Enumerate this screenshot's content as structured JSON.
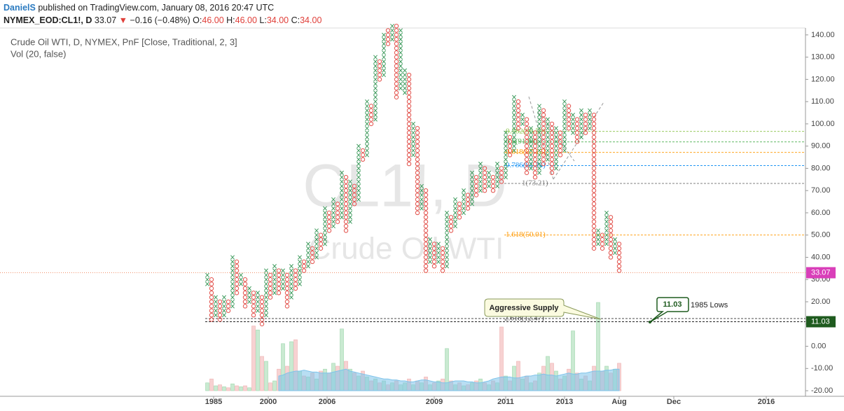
{
  "header": {
    "author": "DanielS",
    "published": "published on TradingView.com, January 08, 2016 20:47 UTC",
    "symbol": "NYMEX_EOD:CL1!, D",
    "last": "33.07",
    "arrow": "▼",
    "change": "−0.16 (−0.48%)",
    "ohlc": [
      {
        "label": "O:",
        "value": "46.00"
      },
      {
        "label": "H:",
        "value": "46.00"
      },
      {
        "label": "L:",
        "value": "34.00"
      },
      {
        "label": "C:",
        "value": "34.00"
      }
    ]
  },
  "chart_data": {
    "type": "pnf",
    "legend": [
      "Crude Oil WTI, D, NYMEX, PnF [Close, Traditional, 2, 3]",
      "Vol (20, false)"
    ],
    "watermark": [
      "CL1!, D",
      "Crude Oil WTI"
    ],
    "box_size": 2,
    "x_color": "#3d9a5c",
    "o_color": "#e2514b",
    "columns": [
      {
        "type": "X",
        "low": 28,
        "high": 32
      },
      {
        "type": "O",
        "low": 12,
        "high": 30
      },
      {
        "type": "X",
        "low": 14,
        "high": 22
      },
      {
        "type": "O",
        "low": 12,
        "high": 20
      },
      {
        "type": "X",
        "low": 14,
        "high": 22
      },
      {
        "type": "O",
        "low": 16,
        "high": 20
      },
      {
        "type": "X",
        "low": 18,
        "high": 40
      },
      {
        "type": "O",
        "low": 24,
        "high": 38
      },
      {
        "type": "X",
        "low": 28,
        "high": 32
      },
      {
        "type": "O",
        "low": 18,
        "high": 30
      },
      {
        "type": "X",
        "low": 20,
        "high": 26
      },
      {
        "type": "O",
        "low": 14,
        "high": 24
      },
      {
        "type": "X",
        "low": 16,
        "high": 24
      },
      {
        "type": "O",
        "low": 10,
        "high": 22
      },
      {
        "type": "X",
        "low": 14,
        "high": 34
      },
      {
        "type": "O",
        "low": 22,
        "high": 32
      },
      {
        "type": "X",
        "low": 24,
        "high": 36
      },
      {
        "type": "O",
        "low": 24,
        "high": 34
      },
      {
        "type": "X",
        "low": 26,
        "high": 34
      },
      {
        "type": "O",
        "low": 18,
        "high": 32
      },
      {
        "type": "X",
        "low": 22,
        "high": 36
      },
      {
        "type": "O",
        "low": 26,
        "high": 34
      },
      {
        "type": "X",
        "low": 28,
        "high": 40
      },
      {
        "type": "O",
        "low": 34,
        "high": 38
      },
      {
        "type": "X",
        "low": 36,
        "high": 46
      },
      {
        "type": "O",
        "low": 38,
        "high": 44
      },
      {
        "type": "X",
        "low": 40,
        "high": 52
      },
      {
        "type": "O",
        "low": 44,
        "high": 50
      },
      {
        "type": "X",
        "low": 46,
        "high": 62
      },
      {
        "type": "O",
        "low": 52,
        "high": 60
      },
      {
        "type": "X",
        "low": 54,
        "high": 66
      },
      {
        "type": "O",
        "low": 56,
        "high": 64
      },
      {
        "type": "X",
        "low": 58,
        "high": 78
      },
      {
        "type": "O",
        "low": 52,
        "high": 76
      },
      {
        "type": "X",
        "low": 56,
        "high": 74
      },
      {
        "type": "O",
        "low": 64,
        "high": 72
      },
      {
        "type": "X",
        "low": 66,
        "high": 90
      },
      {
        "type": "O",
        "low": 84,
        "high": 88
      },
      {
        "type": "X",
        "low": 86,
        "high": 110
      },
      {
        "type": "O",
        "low": 100,
        "high": 108
      },
      {
        "type": "X",
        "low": 102,
        "high": 130
      },
      {
        "type": "O",
        "low": 120,
        "high": 128
      },
      {
        "type": "X",
        "low": 122,
        "high": 140
      },
      {
        "type": "O",
        "low": 136,
        "high": 142
      },
      {
        "type": "X",
        "low": 138,
        "high": 144
      },
      {
        "type": "O",
        "low": 112,
        "high": 144
      },
      {
        "type": "X",
        "low": 116,
        "high": 142
      },
      {
        "type": "X",
        "low": 114,
        "high": 124
      },
      {
        "type": "O",
        "low": 82,
        "high": 122
      },
      {
        "type": "X",
        "low": 86,
        "high": 100
      },
      {
        "type": "O",
        "low": 60,
        "high": 98
      },
      {
        "type": "X",
        "low": 62,
        "high": 72
      },
      {
        "type": "O",
        "low": 34,
        "high": 70
      },
      {
        "type": "X",
        "low": 38,
        "high": 48
      },
      {
        "type": "O",
        "low": 36,
        "high": 46
      },
      {
        "type": "X",
        "low": 38,
        "high": 46
      },
      {
        "type": "O",
        "low": 34,
        "high": 44
      },
      {
        "type": "X",
        "low": 36,
        "high": 60
      },
      {
        "type": "O",
        "low": 52,
        "high": 58
      },
      {
        "type": "X",
        "low": 54,
        "high": 66
      },
      {
        "type": "O",
        "low": 58,
        "high": 64
      },
      {
        "type": "X",
        "low": 60,
        "high": 70
      },
      {
        "type": "O",
        "low": 62,
        "high": 68
      },
      {
        "type": "X",
        "low": 64,
        "high": 78
      },
      {
        "type": "O",
        "low": 68,
        "high": 76
      },
      {
        "type": "X",
        "low": 70,
        "high": 82
      },
      {
        "type": "O",
        "low": 70,
        "high": 80
      },
      {
        "type": "X",
        "low": 72,
        "high": 78
      },
      {
        "type": "O",
        "low": 70,
        "high": 76
      },
      {
        "type": "X",
        "low": 72,
        "high": 82
      },
      {
        "type": "O",
        "low": 74,
        "high": 80
      },
      {
        "type": "X",
        "low": 76,
        "high": 96
      },
      {
        "type": "O",
        "low": 86,
        "high": 94
      },
      {
        "type": "X",
        "low": 88,
        "high": 112
      },
      {
        "type": "O",
        "low": 98,
        "high": 110
      },
      {
        "type": "X",
        "low": 100,
        "high": 104
      },
      {
        "type": "O",
        "low": 78,
        "high": 102
      },
      {
        "type": "X",
        "low": 80,
        "high": 98
      },
      {
        "type": "O",
        "low": 76,
        "high": 96
      },
      {
        "type": "X",
        "low": 78,
        "high": 108
      },
      {
        "type": "O",
        "low": 82,
        "high": 106
      },
      {
        "type": "X",
        "low": 84,
        "high": 102
      },
      {
        "type": "O",
        "low": 78,
        "high": 100
      },
      {
        "type": "X",
        "low": 80,
        "high": 98
      },
      {
        "type": "O",
        "low": 86,
        "high": 96
      },
      {
        "type": "X",
        "low": 88,
        "high": 110
      },
      {
        "type": "O",
        "low": 98,
        "high": 108
      },
      {
        "type": "X",
        "low": 96,
        "high": 104
      },
      {
        "type": "O",
        "low": 92,
        "high": 102
      },
      {
        "type": "X",
        "low": 94,
        "high": 106
      },
      {
        "type": "O",
        "low": 96,
        "high": 104
      },
      {
        "type": "X",
        "low": 98,
        "high": 106
      },
      {
        "type": "O",
        "low": 44,
        "high": 104
      },
      {
        "type": "X",
        "low": 46,
        "high": 52
      },
      {
        "type": "O",
        "low": 44,
        "high": 50
      },
      {
        "type": "X",
        "low": 46,
        "high": 60
      },
      {
        "type": "O",
        "low": 40,
        "high": 58
      },
      {
        "type": "X",
        "low": 42,
        "high": 48
      },
      {
        "type": "O",
        "low": 34,
        "high": 46
      }
    ],
    "volume": [
      8,
      12,
      5,
      6,
      4,
      3,
      7,
      5,
      4,
      5,
      3,
      66,
      62,
      35,
      30,
      8,
      10,
      22,
      48,
      25,
      50,
      52,
      20,
      15,
      14,
      18,
      12,
      20,
      22,
      18,
      28,
      25,
      63,
      30,
      22,
      18,
      15,
      20,
      14,
      10,
      12,
      8,
      10,
      6,
      8,
      10,
      6,
      8,
      12,
      6,
      10,
      8,
      14,
      6,
      8,
      10,
      12,
      43,
      10,
      6,
      8,
      5,
      6,
      8,
      10,
      12,
      8,
      6,
      10,
      8,
      65,
      15,
      10,
      25,
      30,
      12,
      15,
      8,
      10,
      18,
      25,
      35,
      28,
      20,
      12,
      15,
      22,
      61,
      18,
      12,
      15,
      10,
      25,
      90,
      20,
      25,
      18,
      22,
      28
    ],
    "vol_ma": [
      null,
      null,
      null,
      null,
      null,
      null,
      null,
      null,
      null,
      null,
      null,
      null,
      null,
      null,
      null,
      null,
      null,
      15,
      16,
      18,
      19,
      20,
      20,
      21,
      20,
      19,
      19,
      18,
      18,
      18,
      19,
      20,
      21,
      22,
      20,
      19,
      18,
      17,
      16,
      15,
      14,
      13,
      12,
      12,
      11,
      11,
      10,
      10,
      9,
      9,
      10,
      11,
      11,
      10,
      9,
      9,
      8,
      8,
      9,
      10,
      10,
      10,
      9,
      9,
      8,
      8,
      9,
      10,
      12,
      13,
      14,
      14,
      14,
      13,
      13,
      14,
      15,
      15,
      16,
      16,
      17,
      16,
      16,
      15,
      16,
      17,
      18,
      17,
      17,
      18,
      18,
      19,
      20,
      20,
      20,
      21,
      21,
      22,
      22
    ],
    "vol_color": "#7ec3ea",
    "xlim": [
      -49.33,
      142.33
    ],
    "ylim": [
      -22.5,
      143.1
    ],
    "y2lim": [
      0,
      100
    ],
    "xticks": [
      {
        "value": 1.5,
        "label": "1985"
      },
      {
        "value": 14.5,
        "label": "2000"
      },
      {
        "value": 28.5,
        "label": "2006"
      },
      {
        "value": 54,
        "label": "2009"
      },
      {
        "value": 71,
        "label": "2011"
      },
      {
        "value": 85,
        "label": "2013"
      },
      {
        "value": 98,
        "label": "Aug"
      },
      {
        "value": 111,
        "label": "Dec"
      },
      {
        "value": 133,
        "label": "2016"
      }
    ],
    "yticks": [
      {
        "value": 140,
        "label": "140.00"
      },
      {
        "value": 130,
        "label": "130.00"
      },
      {
        "value": 120,
        "label": "120.00"
      },
      {
        "value": 110,
        "label": "110.00"
      },
      {
        "value": 100,
        "label": "100.00"
      },
      {
        "value": 90,
        "label": "90.00"
      },
      {
        "value": 80,
        "label": "80.00"
      },
      {
        "value": 70,
        "label": "70.00"
      },
      {
        "value": 60,
        "label": "60.00"
      },
      {
        "value": 50,
        "label": "50.00"
      },
      {
        "value": 40,
        "label": "40.00"
      },
      {
        "value": 30,
        "label": "30.00"
      },
      {
        "value": 20,
        "label": "20.00"
      },
      {
        "value": 10,
        "label": "10.00"
      },
      {
        "value": 0,
        "label": "0.00"
      },
      {
        "value": -10,
        "label": "-10.00"
      },
      {
        "value": -20,
        "label": "-20.00"
      }
    ],
    "fib_levels": [
      {
        "value": 96.59,
        "label": "0.382(96.59)",
        "color": "#8bc34a"
      },
      {
        "value": 91.88,
        "label": "0.5(91.88)",
        "color": "#4caf50"
      },
      {
        "value": 87.15,
        "label": "0.618(87.15)",
        "color": "#ff9800"
      },
      {
        "value": 81.24,
        "label": "0.786(81.24)",
        "color": "#2196f3"
      },
      {
        "value": 73.21,
        "label": "1(73.21)",
        "color": "#808080"
      },
      {
        "value": 50.01,
        "label": "1.618(50.01)",
        "color": "#ff9800"
      },
      {
        "value": 12.47,
        "label": "2.618(12.47)",
        "color": "#333333"
      }
    ],
    "last_price": 33.07,
    "last_color": "#d93fb9",
    "support": {
      "value": 11.03,
      "note": "1985 Lows",
      "color": "#1f5b1f"
    },
    "annotation": "Aggressive Supply"
  }
}
